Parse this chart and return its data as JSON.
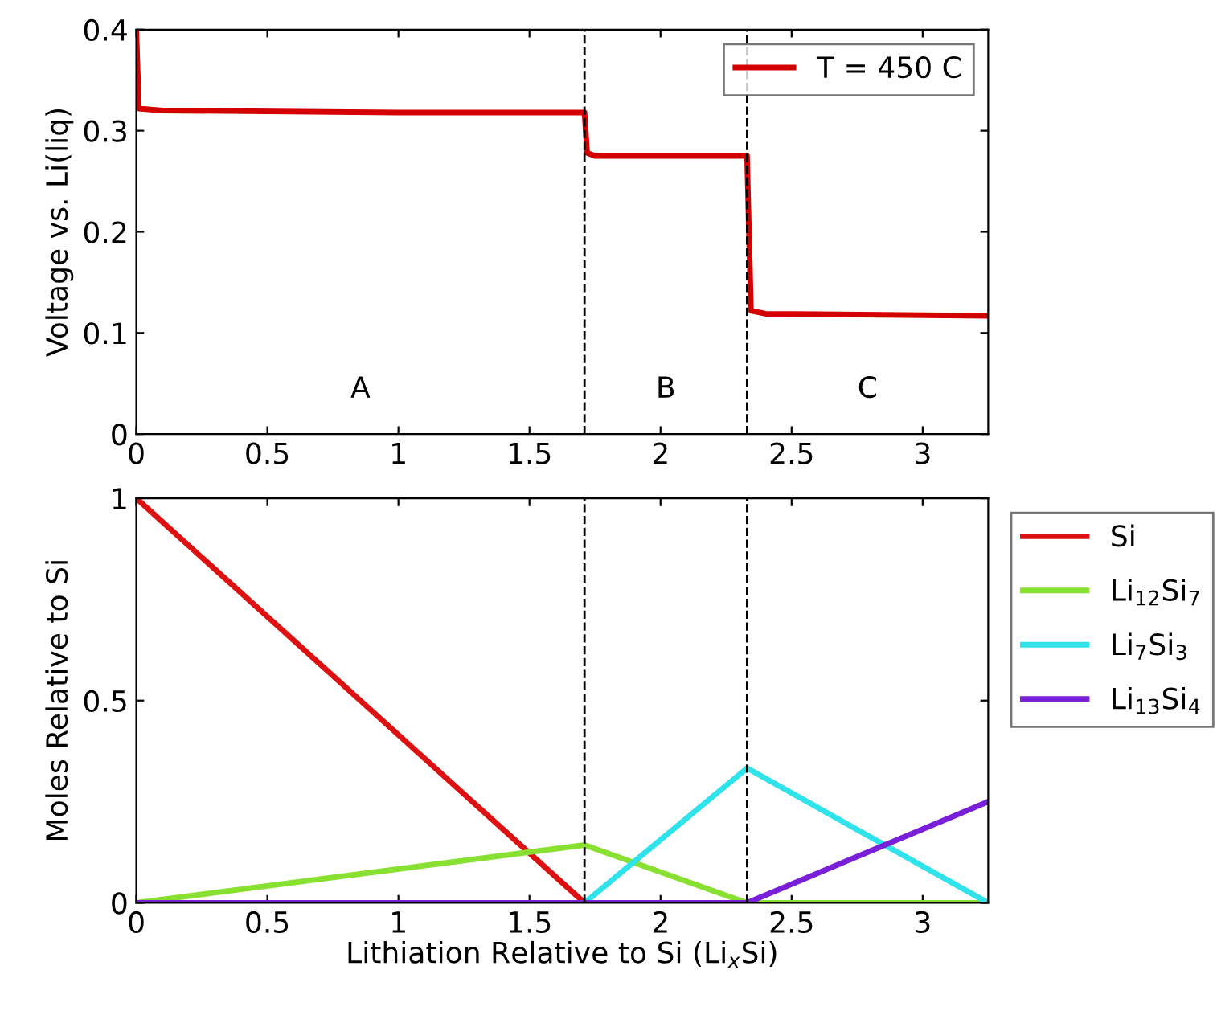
{
  "chart_data": [
    {
      "type": "line",
      "ylabel": "Voltage vs. Li(liq)",
      "xlim": [
        0,
        3.25
      ],
      "ylim": [
        0,
        0.4
      ],
      "xticks": [
        0,
        0.5,
        1,
        1.5,
        2,
        2.5,
        3
      ],
      "yticks": [
        0,
        0.1,
        0.2,
        0.3,
        0.4
      ],
      "legend": "top right",
      "series": [
        {
          "name": "T = 450 C",
          "color": "#d40000",
          "x": [
            0,
            0.01,
            0.1,
            1.0,
            1.71,
            1.72,
            1.75,
            2.33,
            2.345,
            2.4,
            3.25
          ],
          "values": [
            0.4,
            0.322,
            0.32,
            0.318,
            0.318,
            0.278,
            0.275,
            0.275,
            0.122,
            0.119,
            0.117
          ]
        }
      ],
      "ref_lines": [
        {
          "axis": "x",
          "value": 1.71,
          "color": "#000000",
          "line_style": "dashed"
        },
        {
          "axis": "x",
          "value": 2.33,
          "color": "#000000",
          "line_style": "dashed"
        }
      ],
      "annotations": [
        "A",
        "B",
        "C"
      ]
    },
    {
      "type": "line",
      "xlabel": "Lithiation Relative to Si (Li$_{x}$Si)",
      "ylabel": "Moles Relative to Si",
      "xlim": [
        0,
        3.25
      ],
      "ylim": [
        0,
        1
      ],
      "xticks": [
        0,
        0.5,
        1,
        1.5,
        2,
        2.5,
        3
      ],
      "yticks": [
        0,
        0.5,
        1
      ],
      "legend": "right",
      "series": [
        {
          "name": "Si",
          "color": "#dd1111",
          "x": [
            0,
            1.71,
            3.25
          ],
          "values": [
            1,
            0,
            0
          ]
        },
        {
          "name": "Li$_{12}$Si$_{7}$",
          "color": "#88e030",
          "x": [
            0,
            1.71,
            2.33,
            3.25
          ],
          "values": [
            0,
            0.143,
            0,
            0
          ]
        },
        {
          "name": "Li$_{7}$Si$_{3}$",
          "color": "#30e2ea",
          "x": [
            0,
            1.71,
            2.33,
            3.25
          ],
          "values": [
            0,
            0,
            0.333,
            0
          ]
        },
        {
          "name": "Li$_{13}$Si$_{4}$",
          "color": "#7a1fd8",
          "x": [
            0,
            2.33,
            3.25
          ],
          "values": [
            0,
            0,
            0.25
          ]
        }
      ],
      "ref_lines": [
        {
          "axis": "x",
          "value": 1.71,
          "color": "#000000",
          "line_style": "dashed"
        },
        {
          "axis": "x",
          "value": 2.33,
          "color": "#000000",
          "line_style": "dashed"
        }
      ]
    }
  ]
}
